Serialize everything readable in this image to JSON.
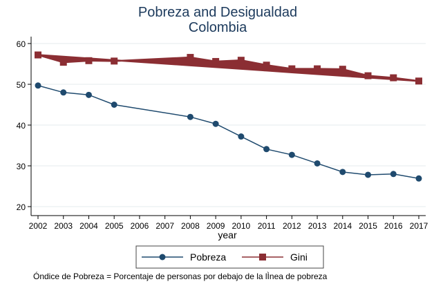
{
  "chart_data": {
    "type": "line",
    "title": "Pobreza and Desigualdad",
    "subtitle": "Colombia",
    "xlabel": "year",
    "ylabel": "",
    "ylim": [
      20,
      60
    ],
    "yticks": [
      20,
      30,
      40,
      50,
      60
    ],
    "xticks": [
      2002,
      2003,
      2004,
      2005,
      2006,
      2007,
      2008,
      2009,
      2010,
      2011,
      2012,
      2013,
      2014,
      2015,
      2016,
      2017
    ],
    "xlim": [
      2002,
      2017
    ],
    "grid": true,
    "legend_position": "bottom",
    "series": [
      {
        "name": "Pobreza",
        "color": "#1f4a6e",
        "marker": "circle",
        "x": [
          2002,
          2003,
          2004,
          2005,
          2008,
          2009,
          2010,
          2011,
          2012,
          2013,
          2014,
          2015,
          2016,
          2017
        ],
        "values": [
          49.7,
          48.0,
          47.4,
          45.0,
          42.0,
          40.3,
          37.2,
          34.1,
          32.7,
          30.6,
          28.5,
          27.8,
          28.0,
          26.9
        ]
      },
      {
        "name": "Gini",
        "color": "#8b2e33",
        "marker": "square",
        "x": [
          2002,
          2003,
          2004,
          2005,
          2008,
          2009,
          2010,
          2011,
          2012,
          2013,
          2014,
          2015,
          2016,
          2017
        ],
        "values": [
          57.2,
          55.4,
          55.8,
          55.7,
          56.6,
          55.6,
          55.9,
          54.7,
          53.8,
          53.8,
          53.7,
          52.1,
          51.6,
          50.8
        ]
      }
    ],
    "note": "Óndice de Pobreza = Porcentaje de personas por debajo de la lÌnea de pobreza"
  }
}
